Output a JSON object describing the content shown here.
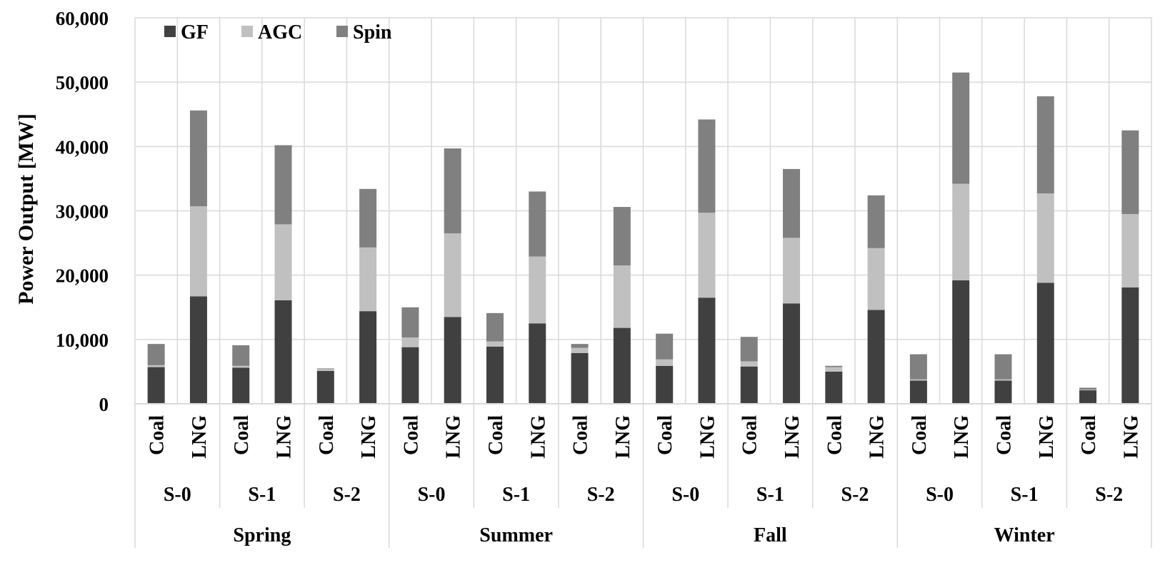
{
  "chart_data": {
    "type": "bar",
    "stacked": true,
    "ylabel": "Power Output [MW]",
    "ylim": [
      0,
      60000
    ],
    "yticks": [
      "0",
      "10,000",
      "20,000",
      "30,000",
      "40,000",
      "50,000",
      "60,000"
    ],
    "grid": true,
    "legend_position": "top-left",
    "colors": {
      "GF": "#404040",
      "AGC": "#c0c0c0",
      "Spin": "#808080"
    },
    "seasons": [
      "Spring",
      "Summer",
      "Fall",
      "Winter"
    ],
    "scenarios": [
      "S-0",
      "S-1",
      "S-2"
    ],
    "fuels": [
      "Coal",
      "LNG"
    ],
    "categories": [
      "Spring S-0 Coal",
      "Spring S-0 LNG",
      "Spring S-1 Coal",
      "Spring S-1 LNG",
      "Spring S-2 Coal",
      "Spring S-2 LNG",
      "Summer S-0 Coal",
      "Summer S-0 LNG",
      "Summer S-1 Coal",
      "Summer S-1 LNG",
      "Summer S-2 Coal",
      "Summer S-2 LNG",
      "Fall S-0 Coal",
      "Fall S-0 LNG",
      "Fall S-1 Coal",
      "Fall S-1 LNG",
      "Fall S-2 Coal",
      "Fall S-2 LNG",
      "Winter S-0 Coal",
      "Winter S-0 LNG",
      "Winter S-1 Coal",
      "Winter S-1 LNG",
      "Winter S-2 Coal",
      "Winter S-2 LNG"
    ],
    "series": [
      {
        "name": "GF",
        "values": [
          5700,
          16700,
          5600,
          16100,
          5100,
          14400,
          8800,
          13500,
          8900,
          12500,
          7900,
          11800,
          5900,
          16500,
          5800,
          15600,
          5000,
          14600,
          3600,
          19200,
          3600,
          18800,
          2100,
          18100
        ]
      },
      {
        "name": "AGC",
        "values": [
          300,
          14000,
          300,
          11800,
          300,
          9900,
          1500,
          13000,
          800,
          10400,
          800,
          9700,
          1000,
          13200,
          800,
          10200,
          700,
          9600,
          200,
          15000,
          200,
          13900,
          100,
          11400
        ]
      },
      {
        "name": "Spin",
        "values": [
          3300,
          14900,
          3200,
          12300,
          100,
          9100,
          4700,
          13200,
          4400,
          10100,
          600,
          9100,
          4000,
          14500,
          3800,
          10700,
          200,
          8200,
          3900,
          17300,
          3900,
          15100,
          300,
          13000
        ]
      }
    ]
  }
}
